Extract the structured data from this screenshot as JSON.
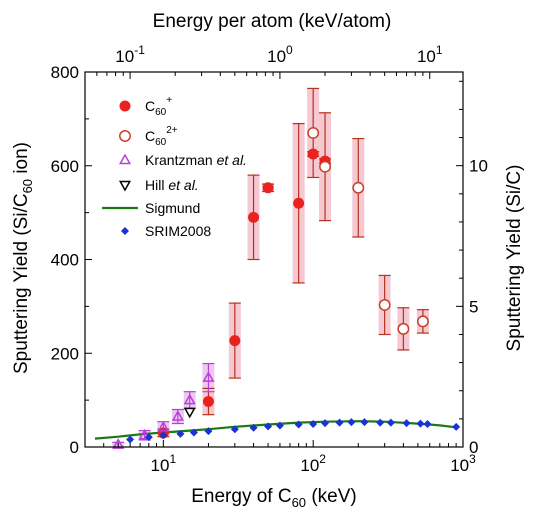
{
  "chart_data": {
    "type": "scatter",
    "title": "",
    "xlabel_main": "Energy of C",
    "xlabel_sub": "60",
    "xlabel_tail": " (keV)",
    "x2label": "Energy per atom (keV/atom)",
    "ylabel_main": "Sputtering Yield (Si/C",
    "ylabel_sub": "60",
    "ylabel_tail": " ion)",
    "y2label": "Sputtering Yield (Si/C)",
    "xscale": "log",
    "xlim": [
      3,
      1000
    ],
    "ylim": [
      0,
      800
    ],
    "y2lim": [
      0,
      13.33
    ],
    "x2lim": [
      0.05,
      16.67
    ],
    "grid": false,
    "legend_position": "top-left",
    "x_ticks": [
      {
        "value": 10,
        "base": "10",
        "exp": "1"
      },
      {
        "value": 100,
        "base": "10",
        "exp": "2"
      },
      {
        "value": 1000,
        "base": "10",
        "exp": "3"
      }
    ],
    "x2_ticks": [
      {
        "value": 0.1,
        "base": "10",
        "exp": "-1"
      },
      {
        "value": 1,
        "base": "10",
        "exp": "0"
      },
      {
        "value": 10,
        "base": "10",
        "exp": "1"
      }
    ],
    "y_ticks": [
      0,
      200,
      400,
      600,
      800
    ],
    "y2_ticks": [
      0,
      5,
      10
    ],
    "colors": {
      "c60_plus": "#e8231f",
      "c60_2plus": "#c8402a",
      "errorbar": "#b5321e",
      "errorband": "#f6c9d2",
      "krantzman": "#b840d8",
      "hill": "#000000",
      "sigmund": "#1a7a14",
      "srim": "#1a33d4"
    },
    "series": [
      {
        "name_main": "C",
        "name_sub": "60",
        "name_sup": "+",
        "marker": "filled-circle",
        "points": [
          {
            "x": 10,
            "y": 30,
            "err": 8
          },
          {
            "x": 20,
            "y": 97,
            "err": 28
          },
          {
            "x": 30,
            "y": 227,
            "err": 80
          },
          {
            "x": 40,
            "y": 490,
            "err": 90
          },
          {
            "x": 50,
            "y": 553,
            "err": 8
          },
          {
            "x": 80,
            "y": 520,
            "err": 170
          },
          {
            "x": 100,
            "y": 625,
            "err": 5
          },
          {
            "x": 120,
            "y": 610,
            "err": 5
          }
        ]
      },
      {
        "name_main": "C",
        "name_sub": "60",
        "name_sup": "2+",
        "marker": "open-circle",
        "points": [
          {
            "x": 100,
            "y": 670,
            "err": 95
          },
          {
            "x": 120,
            "y": 598,
            "err": 115
          },
          {
            "x": 200,
            "y": 553,
            "err": 105
          },
          {
            "x": 300,
            "y": 303,
            "err": 63
          },
          {
            "x": 400,
            "y": 252,
            "err": 45
          },
          {
            "x": 540,
            "y": 268,
            "err": 25
          }
        ]
      },
      {
        "name_main": "Krantzman ",
        "name_italic": "et al.",
        "marker": "open-triangle-up",
        "points": [
          {
            "x": 5,
            "y": 5,
            "err": 5
          },
          {
            "x": 7.5,
            "y": 25,
            "err": 10
          },
          {
            "x": 10,
            "y": 42,
            "err": 12
          },
          {
            "x": 12.5,
            "y": 65,
            "err": 15
          },
          {
            "x": 15,
            "y": 100,
            "err": 18
          },
          {
            "x": 20,
            "y": 148,
            "err": 30
          }
        ]
      },
      {
        "name_main": "Hill ",
        "name_italic": "et al.",
        "marker": "open-triangle-down",
        "points": [
          {
            "x": 15,
            "y": 75,
            "err": 0
          }
        ]
      },
      {
        "name_main": "Sigmund",
        "marker": "line",
        "points": [
          {
            "x": 3.5,
            "y": 18
          },
          {
            "x": 5,
            "y": 22
          },
          {
            "x": 7,
            "y": 27
          },
          {
            "x": 10,
            "y": 31
          },
          {
            "x": 15,
            "y": 35
          },
          {
            "x": 20,
            "y": 38
          },
          {
            "x": 30,
            "y": 43
          },
          {
            "x": 50,
            "y": 48
          },
          {
            "x": 80,
            "y": 52
          },
          {
            "x": 120,
            "y": 54
          },
          {
            "x": 200,
            "y": 55
          },
          {
            "x": 300,
            "y": 54
          },
          {
            "x": 500,
            "y": 50
          },
          {
            "x": 700,
            "y": 46
          },
          {
            "x": 900,
            "y": 42
          }
        ]
      },
      {
        "name_main": "SRIM2008",
        "marker": "filled-diamond",
        "points": [
          {
            "x": 6,
            "y": 16
          },
          {
            "x": 8,
            "y": 21
          },
          {
            "x": 10,
            "y": 25
          },
          {
            "x": 13,
            "y": 28
          },
          {
            "x": 16,
            "y": 31
          },
          {
            "x": 20,
            "y": 34
          },
          {
            "x": 30,
            "y": 38
          },
          {
            "x": 40,
            "y": 41
          },
          {
            "x": 50,
            "y": 44
          },
          {
            "x": 60,
            "y": 46
          },
          {
            "x": 80,
            "y": 48
          },
          {
            "x": 100,
            "y": 49
          },
          {
            "x": 120,
            "y": 51
          },
          {
            "x": 150,
            "y": 52
          },
          {
            "x": 180,
            "y": 53
          },
          {
            "x": 220,
            "y": 53
          },
          {
            "x": 280,
            "y": 52
          },
          {
            "x": 330,
            "y": 52
          },
          {
            "x": 420,
            "y": 51
          },
          {
            "x": 520,
            "y": 50
          },
          {
            "x": 580,
            "y": 49
          },
          {
            "x": 900,
            "y": 43
          }
        ]
      }
    ]
  }
}
